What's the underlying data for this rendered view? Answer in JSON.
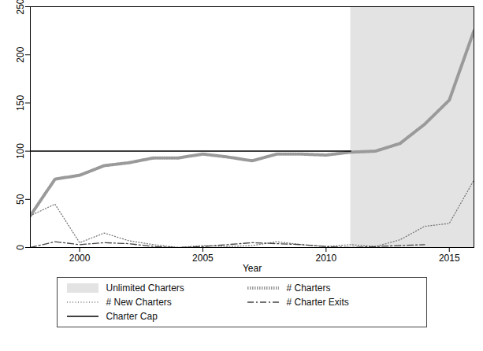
{
  "chart_data": {
    "type": "line",
    "x_label": "Year",
    "x": [
      1998,
      1999,
      2000,
      2001,
      2002,
      2003,
      2004,
      2005,
      2006,
      2007,
      2008,
      2009,
      2010,
      2011,
      2012,
      2013,
      2014,
      2015,
      2016
    ],
    "xlim": [
      1998,
      2016
    ],
    "xticks": [
      2000,
      2005,
      2010,
      2015
    ],
    "ylim": [
      0,
      250
    ],
    "yticks": [
      0,
      50,
      100,
      150,
      200,
      250
    ],
    "legend": "bottom",
    "shaded_region": {
      "name": "Unlimited Charters",
      "start": 2011,
      "end": 2016,
      "color": "#e3e3e3"
    },
    "series": [
      {
        "name": "# Charters",
        "color": "#9a9a9a",
        "line_style": "thick_dotted",
        "values": [
          33,
          71,
          75,
          85,
          88,
          93,
          93,
          97,
          94,
          90,
          97,
          97,
          96,
          99,
          100,
          108,
          128,
          153,
          225
        ]
      },
      {
        "name": "# New Charters",
        "color": "#777777",
        "line_style": "dotted",
        "values": [
          33,
          45,
          5,
          15,
          7,
          3,
          0,
          2,
          1,
          2,
          6,
          3,
          1,
          3,
          1,
          8,
          22,
          25,
          70
        ]
      },
      {
        "name": "# Charter Exits",
        "color": "#444444",
        "line_style": "dashdot",
        "values": [
          0,
          6,
          3,
          5,
          4,
          1,
          0,
          1,
          3,
          5,
          4,
          3,
          1,
          0,
          1,
          2,
          3,
          null,
          null
        ]
      },
      {
        "name": "Charter Cap",
        "color": "#000000",
        "line_style": "solid",
        "values": [
          100,
          100,
          100,
          100,
          100,
          100,
          100,
          100,
          100,
          100,
          100,
          100,
          100,
          100,
          null,
          null,
          null,
          null,
          null
        ]
      }
    ]
  }
}
